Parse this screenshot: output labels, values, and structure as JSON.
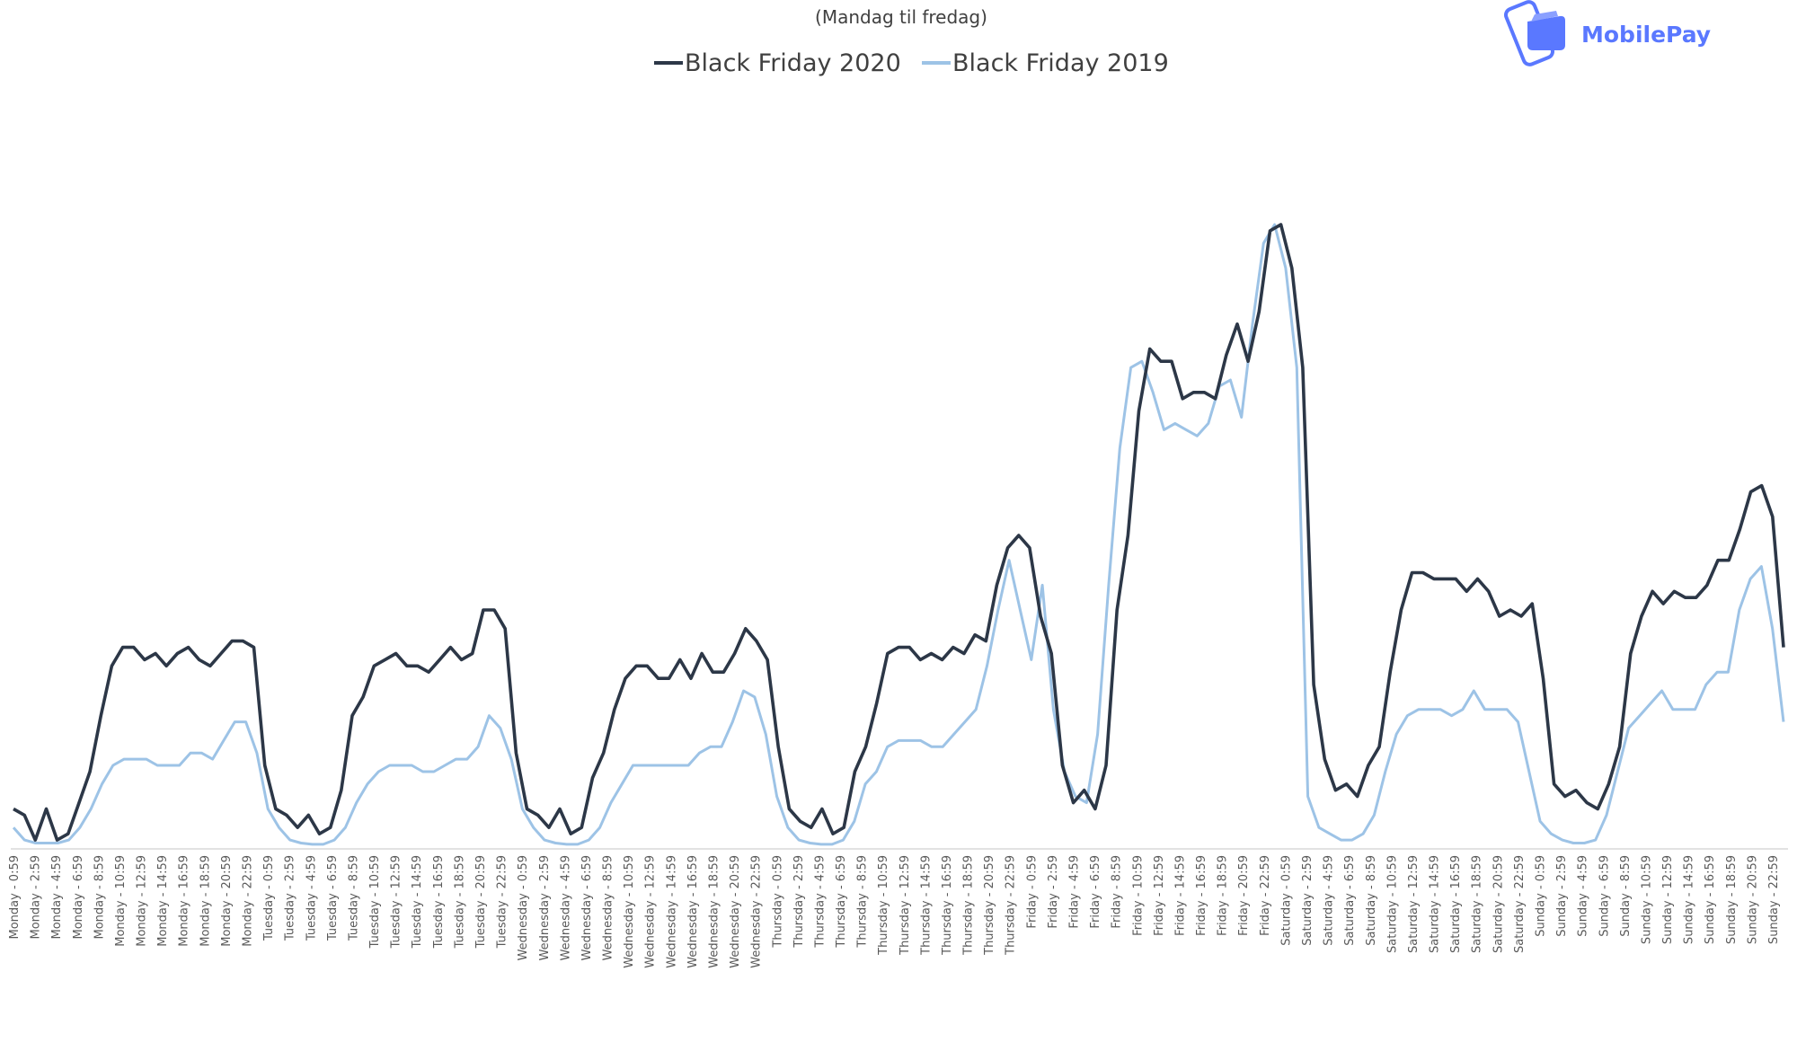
{
  "logo": {
    "text": "MobilePay",
    "color": "#5a78ff"
  },
  "chart_data": {
    "type": "line",
    "subtitle": "(Mandag til fredag)",
    "legend_placement": "top-center",
    "grid": false,
    "ylim": [
      0,
      100
    ],
    "series": [
      {
        "name": "Black Friday 2020",
        "color": "#2c3747",
        "values": [
          6,
          5,
          1,
          6,
          1,
          2,
          7,
          12,
          21,
          29,
          32,
          32,
          30,
          31,
          29,
          31,
          32,
          30,
          29,
          31,
          33,
          33,
          32,
          13,
          6,
          5,
          3,
          5,
          2,
          3,
          9,
          21,
          24,
          29,
          30,
          31,
          29,
          29,
          28,
          30,
          32,
          30,
          31,
          38,
          38,
          35,
          15,
          6,
          5,
          3,
          6,
          2,
          3,
          11,
          15,
          22,
          27,
          29,
          29,
          27,
          27,
          30,
          27,
          31,
          28,
          28,
          31,
          35,
          33,
          30,
          16,
          6,
          4,
          3,
          6,
          2,
          3,
          12,
          16,
          23,
          31,
          32,
          32,
          30,
          31,
          30,
          32,
          31,
          34,
          33,
          42,
          48,
          50,
          48,
          37,
          31,
          13,
          7,
          9,
          6,
          13,
          38,
          50,
          70,
          80,
          78,
          78,
          72,
          73,
          73,
          72,
          79,
          84,
          78,
          86,
          99,
          100,
          93,
          77,
          26,
          14,
          9,
          10,
          8,
          13,
          16,
          28,
          38,
          44,
          44,
          43,
          43,
          43,
          41,
          43,
          41,
          37,
          38,
          37,
          39,
          27,
          10,
          8,
          9,
          7,
          6,
          10,
          16,
          31,
          37,
          41,
          39,
          41,
          40,
          40,
          42,
          46,
          46,
          51,
          57,
          58,
          53,
          32
        ]
      },
      {
        "name": "Black Friday 2019",
        "color": "#9dc3e6",
        "values": [
          3,
          1,
          0.5,
          0.5,
          0.5,
          1,
          3,
          6,
          10,
          13,
          14,
          14,
          14,
          13,
          13,
          13,
          15,
          15,
          14,
          17,
          20,
          20,
          15,
          6,
          3,
          1,
          0.5,
          0.3,
          0.3,
          1,
          3,
          7,
          10,
          12,
          13,
          13,
          13,
          12,
          12,
          13,
          14,
          14,
          16,
          21,
          19,
          14,
          6,
          3,
          1,
          0.5,
          0.3,
          0.3,
          1,
          3,
          7,
          10,
          13,
          13,
          13,
          13,
          13,
          13,
          15,
          16,
          16,
          20,
          25,
          24,
          18,
          8,
          3,
          1,
          0.5,
          0.3,
          0.3,
          1,
          4,
          10,
          12,
          16,
          17,
          17,
          17,
          16,
          16,
          18,
          20,
          22,
          29,
          38,
          46,
          38,
          30,
          42,
          22,
          12,
          8,
          7,
          18,
          42,
          64,
          77,
          78,
          73,
          67,
          68,
          67,
          66,
          68,
          74,
          75,
          69,
          84,
          97,
          100,
          93,
          77,
          8,
          3,
          2,
          1,
          1,
          2,
          5,
          12,
          18,
          21,
          22,
          22,
          22,
          21,
          22,
          25,
          22,
          22,
          22,
          20,
          12,
          4,
          2,
          1,
          0.5,
          0.5,
          1,
          5,
          12,
          19,
          21,
          23,
          25,
          22,
          22,
          22,
          26,
          28,
          28,
          38,
          43,
          45,
          35,
          20
        ]
      }
    ],
    "x_ticks_tail": [
      "Sunday - 22:59"
    ],
    "x_tick_days": [
      "Monday",
      "Tuesday",
      "Wednesday",
      "Thursday",
      "Friday",
      "Saturday",
      "Sunday"
    ],
    "x_tick_times": [
      "0:59",
      "2:59",
      "4:59",
      "6:59",
      "8:59",
      "10:59",
      "12:59",
      "14:59",
      "16:59",
      "18:59",
      "20:59",
      "22:59"
    ]
  }
}
